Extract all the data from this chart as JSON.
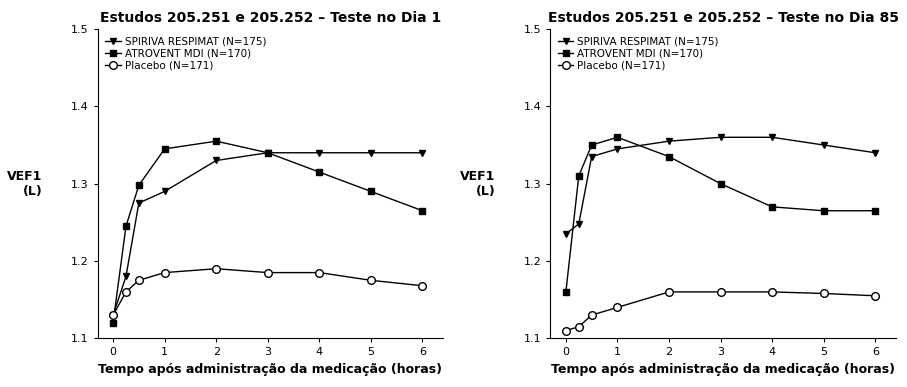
{
  "chart1": {
    "title": "Estudos 205.251 e 205.252 – Teste no Dia 1",
    "x": [
      0,
      0.25,
      0.5,
      1,
      2,
      3,
      4,
      5,
      6
    ],
    "spiriva": [
      1.13,
      1.18,
      1.275,
      1.29,
      1.33,
      1.34,
      1.34,
      1.34,
      1.34
    ],
    "atrovent": [
      1.12,
      1.245,
      1.298,
      1.345,
      1.355,
      1.34,
      1.315,
      1.29,
      1.265
    ],
    "placebo": [
      1.13,
      1.16,
      1.175,
      1.185,
      1.19,
      1.185,
      1.185,
      1.175,
      1.168
    ]
  },
  "chart2": {
    "title": "Estudos 205.251 e 205.252 – Teste no Dia 85",
    "x": [
      0,
      0.25,
      0.5,
      1,
      2,
      3,
      4,
      5,
      6
    ],
    "spiriva": [
      1.235,
      1.248,
      1.335,
      1.345,
      1.355,
      1.36,
      1.36,
      1.35,
      1.34
    ],
    "atrovent": [
      1.16,
      1.31,
      1.35,
      1.36,
      1.335,
      1.3,
      1.27,
      1.265,
      1.265
    ],
    "placebo": [
      1.11,
      1.115,
      1.13,
      1.14,
      1.16,
      1.16,
      1.16,
      1.158,
      1.155
    ]
  },
  "legend": {
    "spiriva_label": "SPIRIVA RESPIMAT (N=175)",
    "atrovent_label": "ATROVENT MDI (N=170)",
    "placebo_label": "Placebo (N=171)"
  },
  "ylabel": "VEF1\n(L)",
  "xlabel": "Tempo após administração da medicação (horas)",
  "ylim": [
    1.1,
    1.5
  ],
  "yticks": [
    1.1,
    1.2,
    1.3,
    1.4,
    1.5
  ],
  "xticks": [
    0,
    1,
    2,
    3,
    4,
    5,
    6
  ],
  "line_color": "#000000",
  "title_color": "#000000",
  "xlabel_color": "#000000",
  "ylabel_color": "#000000",
  "title_fontsize": 10,
  "label_fontsize": 9,
  "tick_fontsize": 8,
  "legend_fontsize": 7.5
}
